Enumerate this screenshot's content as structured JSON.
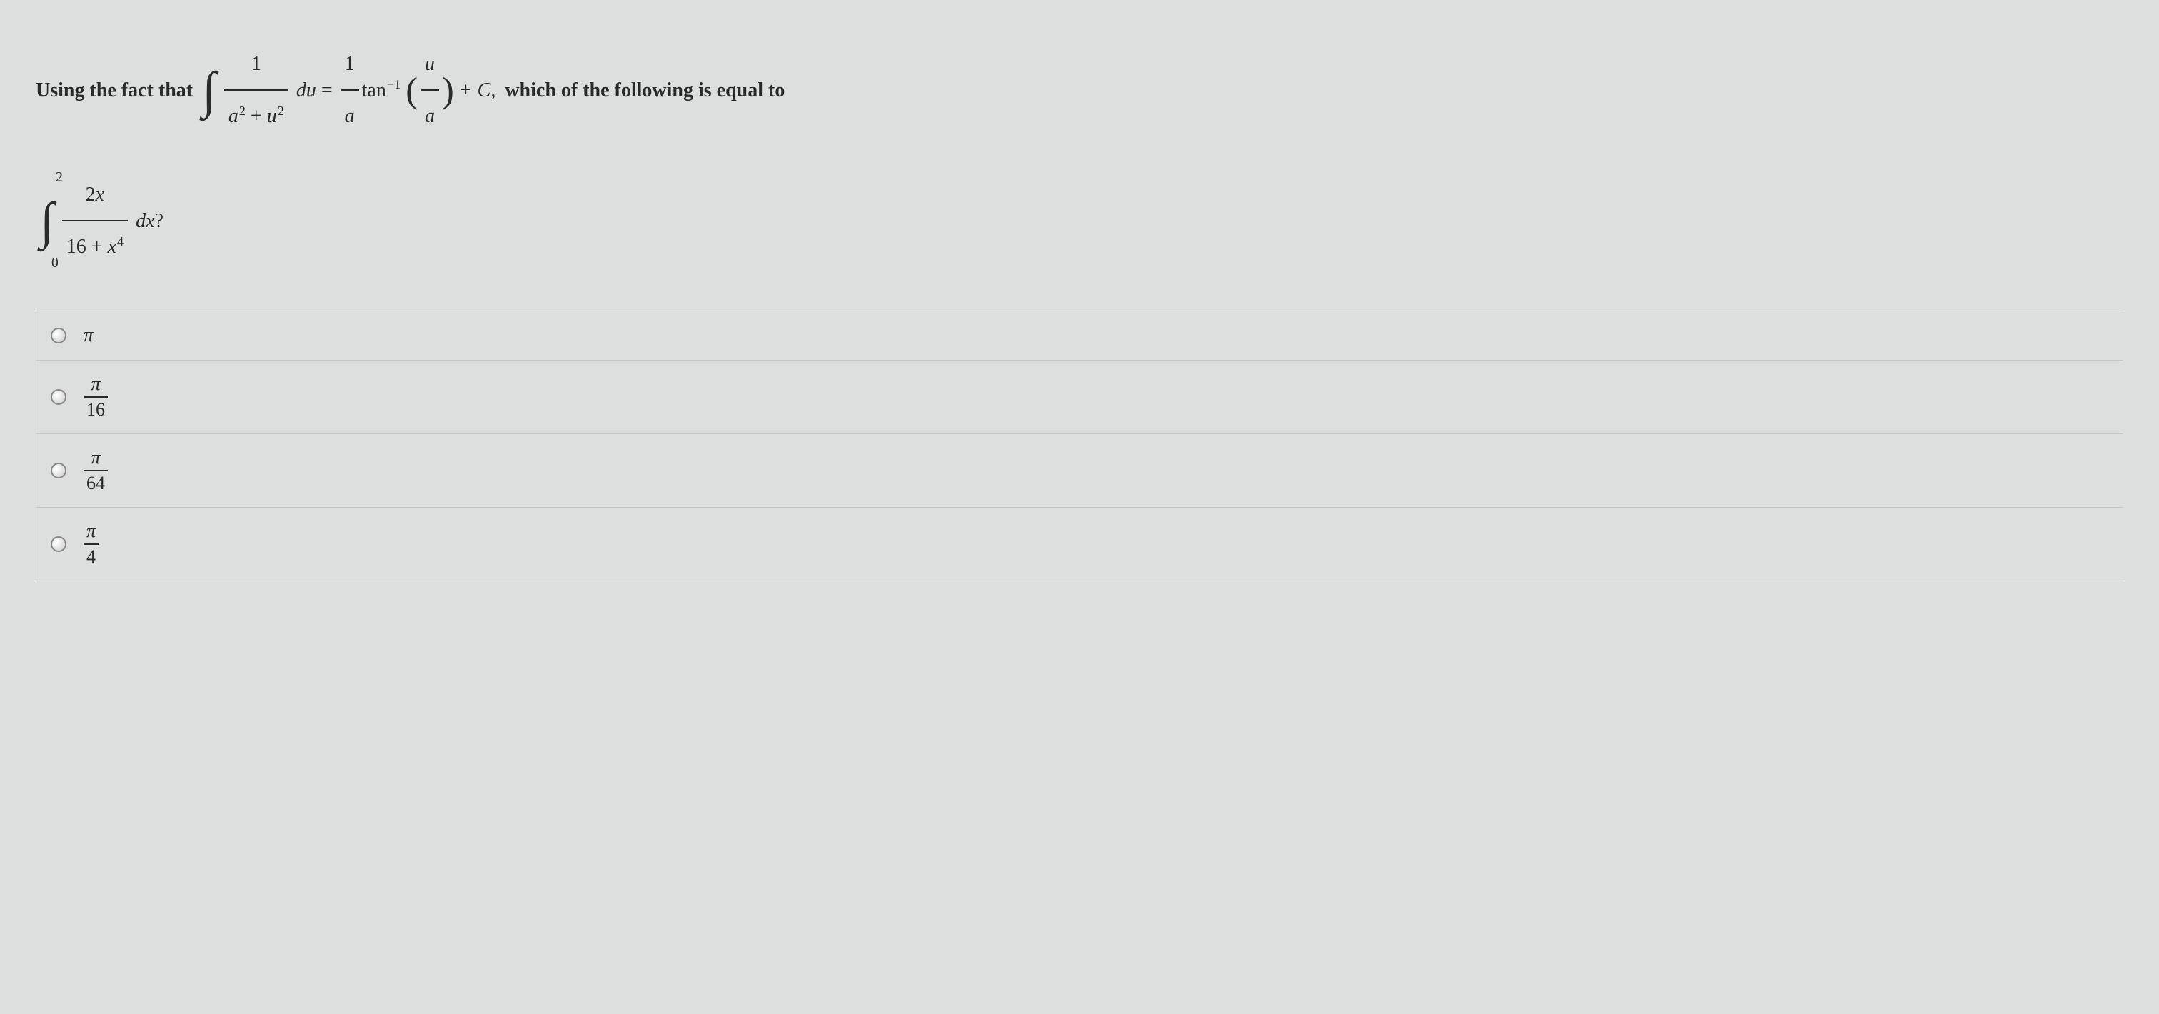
{
  "question": {
    "prefix_text": "Using the fact that",
    "formula1": {
      "integrand_num": "1",
      "integrand_den_a": "a",
      "integrand_den_u": "u",
      "exp": "2",
      "du": "du",
      "equals": "=",
      "result_num": "1",
      "result_den": "a",
      "tan": "tan",
      "tan_exp": "−1",
      "arg_num": "u",
      "arg_den": "a",
      "plus_c": "+ C,"
    },
    "middle_text": "which of the following is equal to",
    "formula2": {
      "upper_limit": "2",
      "lower_limit": "0",
      "integrand_num_coef": "2",
      "integrand_num_var": "x",
      "integrand_den_const": "16",
      "integrand_den_plus": "+",
      "integrand_den_var": "x",
      "integrand_den_exp": "4",
      "dx": "dx",
      "qmark": "?"
    }
  },
  "options": [
    {
      "type": "simple",
      "value": "π"
    },
    {
      "type": "fraction",
      "num": "π",
      "den": "16"
    },
    {
      "type": "fraction",
      "num": "π",
      "den": "64"
    },
    {
      "type": "fraction",
      "num": "π",
      "den": "4"
    }
  ],
  "colors": {
    "background": "#dcdfde",
    "text": "#2a2a2a",
    "border": "#c5c8c6",
    "radio_border": "#888888"
  }
}
